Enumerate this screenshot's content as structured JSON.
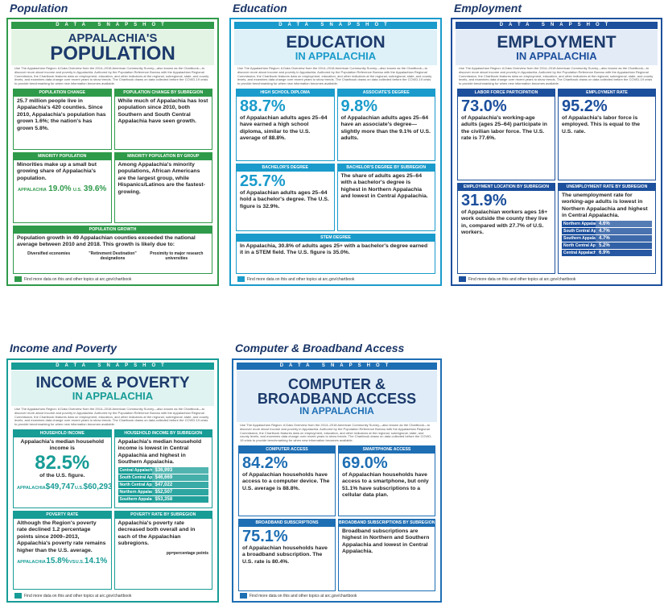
{
  "cards": [
    {
      "heading": "Population",
      "banner": "DATA SNAPSHOT",
      "color": "#2f9a4a",
      "light": "#e4f4e4",
      "title_lines": [
        "APPALACHIA'S",
        "POPULATION"
      ],
      "intro": "Use The Appalachian Region: A Data Overview from the 2014–2018 American Community Survey—also known as the Chartbook—to discover more about income and poverty in Appalachia. Authored by the Population Reference Bureau with the Appalachian Regional Commission, the Chartbook features data on employment, education, and other indicators at the regional, subregional, state, and county levels, and examines data change over recent years to show trends. The Chartbook draws on data collected before the COVID-19 crisis to provide benchmarking for when new information becomes available.",
      "panels": [
        {
          "header": "POPULATION CHANGE",
          "text": "25.7 million people live in Appalachia's 420 counties. Since 2010, Appalachia's population has grown 1.6%; the nation's has grown 5.8%."
        },
        {
          "header": "POPULATION CHANGE BY SUBREGION",
          "text": "While much of Appalachia has lost population since 2010, both Southern and South Central Appalachia have seen growth."
        },
        {
          "header": "MINORITY POPULATION",
          "text": "Minorities make up a small but growing share of Appalachia's population.",
          "stats": [
            "APPALACHIA",
            "19.0%",
            "U.S.",
            "39.6%"
          ]
        },
        {
          "header": "MINORITY POPULATION BY GROUP",
          "text": "Among Appalachia's minority populations, African Americans are the largest group, while Hispanics/Latinos are the fastest-growing."
        },
        {
          "header": "POPULATION GROWTH",
          "text": "Population growth in 49 Appalachian counties exceeded the national average between 2010 and 2018. This growth is likely due to:",
          "items": [
            "Diversified economies",
            "\"Retirement Destination\" designations",
            "Proximity to major research universities"
          ]
        }
      ],
      "footer": "Find more data on this and other topics at arc.gov/chartbook"
    },
    {
      "heading": "Education",
      "banner": "DATA SNAPSHOT",
      "color": "#1a9bcb",
      "light": "#def1f8",
      "title_lines": [
        "EDUCATION",
        "IN APPALACHIA"
      ],
      "intro": "Use The Appalachian Region: A Data Overview from the 2014–2018 American Community Survey—also known as the Chartbook—to discover more about income and poverty in Appalachia. Authored by the Population Reference Bureau with the Appalachian Regional Commission, the Chartbook features data on employment, education, and other indicators at the regional, subregional, state, and county levels, and examines data change over recent years to show trends. The Chartbook draws on data collected before the COVID-19 crisis to provide benchmarking for when new information becomes available.",
      "panels": [
        {
          "header": "HIGH SCHOOL DIPLOMA",
          "big": "88.7%",
          "text": "of Appalachian adults ages 25–64 have earned a high school diploma, similar to the U.S. average of 88.8%."
        },
        {
          "header": "ASSOCIATE'S DEGREE",
          "big": "9.8%",
          "text": "of Appalachian adults ages 25–64 have an associate's degree—slightly more than the 9.1% of U.S. adults."
        },
        {
          "header": "BACHELOR'S DEGREE",
          "big": "25.7%",
          "text": "of Appalachian adults ages 25–64 hold a bachelor's degree. The U.S. figure is 32.9%."
        },
        {
          "header": "BACHELOR'S DEGREE BY SUBREGION",
          "text": "The share of adults ages 25–64 with a bachelor's degree is highest in Northern Appalachia and lowest in Central Appalachia."
        },
        {
          "header": "STEM DEGREE",
          "text": "In Appalachia, 30.8% of adults ages 25+ with a bachelor's degree earned it in a STEM field. The U.S. figure is 35.0%."
        }
      ],
      "footer": "Find more data on this and other topics at arc.gov/chartbook"
    },
    {
      "heading": "Employment",
      "banner": "DATA SNAPSHOT",
      "color": "#1c4f9c",
      "light": "#e3ebf7",
      "title_lines": [
        "EMPLOYMENT",
        "IN APPALACHIA"
      ],
      "intro": "Use The Appalachian Region: A Data Overview from the 2014–2018 American Community Survey—also known as the Chartbook—to discover more about income and poverty in Appalachia. Authored by the Population Reference Bureau with the Appalachian Regional Commission, the Chartbook features data on employment, education, and other indicators at the regional, subregional, state, and county levels, and examines data change over recent years to show trends. The Chartbook draws on data collected before the COVID-19 crisis to provide benchmarking for when new information becomes available.",
      "panels": [
        {
          "header": "LABOR FORCE PARTICIPATION",
          "big": "73.0%",
          "text": "of Appalachia's working-age adults (ages 25–64) participate in the civilian labor force. The U.S. rate is 77.6%."
        },
        {
          "header": "EMPLOYMENT RATE",
          "big": "95.2%",
          "text": "of Appalachia's labor force is employed. This is equal to the U.S. rate."
        },
        {
          "header": "EMPLOYMENT LOCATION BY SUBREGION",
          "big": "31.9%",
          "text": "of Appalachian workers ages 16+ work outside the county they live in, compared with 27.7% of U.S. workers."
        },
        {
          "header": "UNEMPLOYMENT RATE BY SUBREGION",
          "text": "The unemployment rate for working-age adults is lowest in Northern Appalachia and highest in Central Appalachia.",
          "rows": [
            [
              "Northern Appalachia",
              "4.6%"
            ],
            [
              "South Central Appalachia",
              "4.7%"
            ],
            [
              "Southern Appalachia",
              "4.7%"
            ],
            [
              "North Central Appalachia",
              "5.2%"
            ],
            [
              "Central Appalachia",
              "6.9%"
            ]
          ]
        }
      ],
      "footer": "Find more data on this and other topics at arc.gov/chartbook"
    },
    {
      "heading": "Income and Poverty",
      "banner": "DATA SNAPSHOT",
      "color": "#179c96",
      "light": "#dff3f1",
      "title_lines": [
        "INCOME & POVERTY",
        "IN APPALACHIA"
      ],
      "intro": "Use The Appalachian Region: A Data Overview from the 2014–2018 American Community Survey—also known as the Chartbook—to discover more about income and poverty in Appalachia. Authored by the Population Reference Bureau with the Appalachian Regional Commission, the Chartbook features data on employment, education, and other indicators at the regional, subregional, state, and county levels, and examines data change over recent years to show trends. The Chartbook draws on data collected before the COVID-19 crisis to provide benchmarking for when new information becomes available.",
      "panels": [
        {
          "header": "HOUSEHOLD INCOME",
          "text": "Appalachia's median household income is",
          "big": "82.5%",
          "text2": "of the U.S. figure.",
          "stats": [
            "APPALACHIA",
            "$49,747",
            "U.S.",
            "$60,293"
          ]
        },
        {
          "header": "HOUSEHOLD INCOME BY SUBREGION",
          "text": "Appalachia's median household income is lowest in Central Appalachia and highest in Southern Appalachia.",
          "rows": [
            [
              "Central Appalachia",
              "$36,993"
            ],
            [
              "South Central Appalachia",
              "$46,669"
            ],
            [
              "North Central Appalachia",
              "$47,022"
            ],
            [
              "Northern Appalachia",
              "$52,507"
            ],
            [
              "Southern Appalachia",
              "$53,358"
            ]
          ]
        },
        {
          "header": "POVERTY RATE",
          "text": "Although the Region's poverty rate declined 1.2 percentage points since 2009–2013, Appalachia's poverty rate remains higher than the U.S. average.",
          "stats": [
            "APPALACHIA",
            "15.8%",
            "VS",
            "U.S.",
            "14.1%"
          ]
        },
        {
          "header": "POVERTY RATE BY SUBREGION",
          "text": "Appalachia's poverty rate decreased both overall and in each of the Appalachian subregions.",
          "text2": "pp=percentage points"
        }
      ],
      "footer": "Find more data on this and other topics at arc.gov/chartbook"
    },
    {
      "heading": "Computer & Broadband Access",
      "banner": "DATA SNAPSHOT",
      "color": "#1e6eb4",
      "light": "#e0edf8",
      "title_lines": [
        "COMPUTER &",
        "BROADBAND ACCESS",
        "IN APPALACHIA"
      ],
      "intro": "Use The Appalachian Region: A Data Overview from the 2014–2018 American Community Survey—also known as the Chartbook—to discover more about income and poverty in Appalachia. Authored by the Population Reference Bureau with the Appalachian Regional Commission, the Chartbook features data on employment, education, and other indicators at the regional, subregional, state, and county levels, and examines data change over recent years to show trends. The Chartbook draws on data collected before the COVID-19 crisis to provide benchmarking for when new information becomes available.",
      "panels": [
        {
          "header": "COMPUTER ACCESS",
          "big": "84.2%",
          "text": "of Appalachian households have access to a computer device. The U.S. average is 88.8%."
        },
        {
          "header": "SMARTPHONE ACCESS",
          "big": "69.0%",
          "text": "of Appalachian households have access to a smartphone, but only 51.1% have subscriptions to a cellular data plan."
        },
        {
          "header": "BROADBAND SUBSCRIPTIONS",
          "big": "75.1%",
          "text": "of Appalachian households have a broadband subscription. The U.S. rate is 80.4%."
        },
        {
          "header": "BROADBAND SUBSCRIPTIONS BY SUBREGION",
          "text": "Broadband subscriptions are highest in Northern and Southern Appalachia and lowest in Central Appalachia."
        }
      ],
      "footer": "Find more data on this and other topics at arc.gov/chartbook"
    }
  ]
}
